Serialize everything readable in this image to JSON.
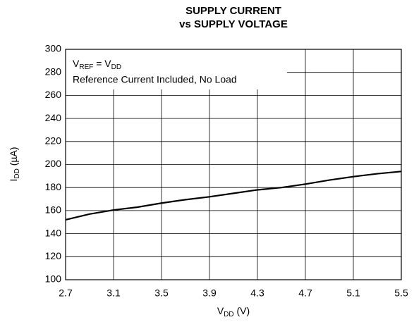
{
  "chart_data": {
    "type": "line",
    "title": [
      "SUPPLY CURRENT",
      "vs SUPPLY VOLTAGE"
    ],
    "xlabel": [
      "V",
      "DD",
      " (V)"
    ],
    "ylabel": [
      "I",
      "DD",
      " (µA)"
    ],
    "annotation": [
      [
        "V",
        "REF",
        " = V",
        "DD"
      ],
      "Reference Current Included, No Load"
    ],
    "x": [
      2.7,
      2.9,
      3.1,
      3.3,
      3.5,
      3.7,
      3.9,
      4.1,
      4.3,
      4.5,
      4.7,
      4.9,
      5.1,
      5.3,
      5.5
    ],
    "series": [
      {
        "color": "#000000",
        "values": [
          152,
          157,
          160.5,
          163,
          166.5,
          169.5,
          172,
          175,
          178,
          180,
          183,
          186.5,
          189.5,
          192,
          194
        ]
      }
    ],
    "xlim": [
      2.7,
      5.5
    ],
    "xticks": [
      2.7,
      3.1,
      3.5,
      3.9,
      4.3,
      4.7,
      5.1,
      5.5
    ],
    "ylim": [
      100,
      300
    ],
    "yticks": [
      100,
      120,
      140,
      160,
      180,
      200,
      220,
      240,
      260,
      280,
      300
    ],
    "grid": true
  }
}
